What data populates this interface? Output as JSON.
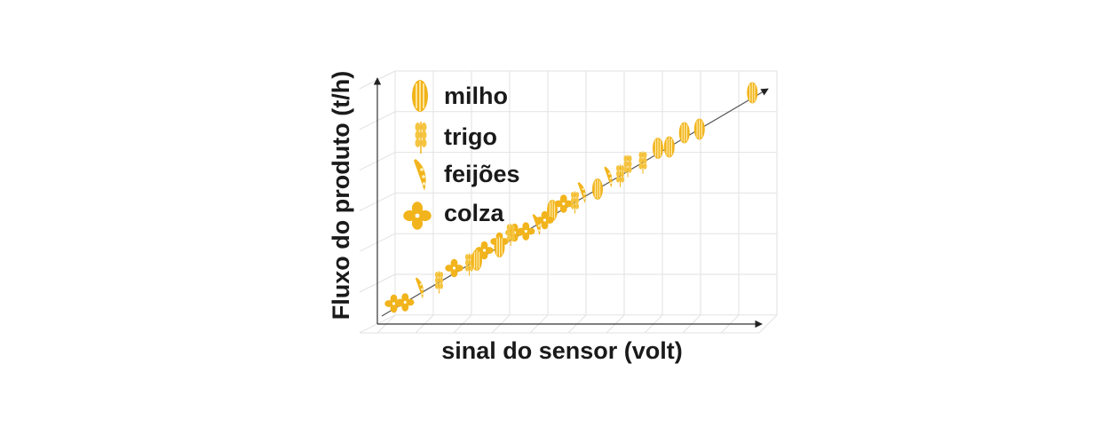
{
  "axes": {
    "y_label": "Fluxo do produto (t/h)",
    "x_label": "sinal do sensor (volt)"
  },
  "legend": {
    "items": [
      {
        "label": "milho"
      },
      {
        "label": "trigo"
      },
      {
        "label": "feijões"
      },
      {
        "label": "colza"
      }
    ]
  }
}
